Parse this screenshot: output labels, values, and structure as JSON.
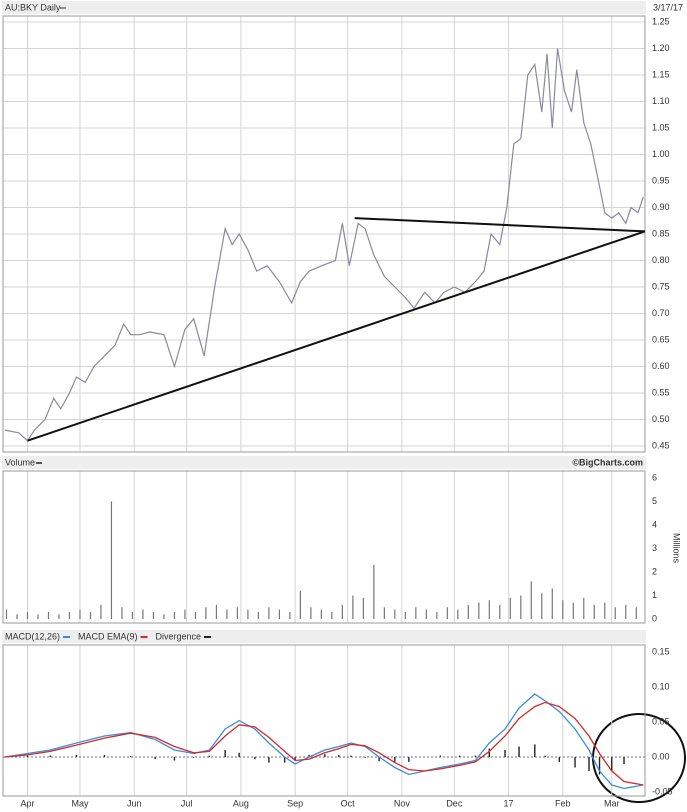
{
  "chart_data": [
    {
      "type": "line",
      "title": "AU:BKY Daily",
      "date": "3/17/17",
      "xlim": [
        -14,
        353
      ],
      "ylim": [
        0.45,
        1.25
      ],
      "yticks": [
        0.45,
        {
          "value": 0.5,
          "label": "0.50"
        },
        0.55,
        {
          "value": 0.6,
          "label": "0.60"
        },
        0.65,
        {
          "value": 0.7,
          "label": "0.70"
        },
        0.75,
        {
          "value": 0.8,
          "label": "0.80"
        },
        0.85,
        {
          "value": 0.9,
          "label": "0.90"
        },
        0.95,
        {
          "value": 1.0,
          "label": "1.00"
        },
        1.05,
        {
          "value": 1.1,
          "label": "1.10"
        },
        1.15,
        {
          "value": 1.2,
          "label": "1.20"
        },
        1.25
      ],
      "grid": true,
      "series": [
        {
          "name": "AU:BKY",
          "color": "#8a8a9a",
          "x": [
            -13,
            -5,
            0,
            4,
            10,
            15,
            19,
            24,
            28,
            33,
            38,
            44,
            50,
            55,
            59,
            64,
            70,
            78,
            84,
            90,
            95,
            101,
            107,
            113,
            117,
            121,
            126,
            131,
            137,
            144,
            151,
            156,
            161,
            168,
            176,
            180,
            184,
            189,
            193,
            198,
            204,
            210,
            216,
            221,
            227,
            233,
            238,
            244,
            250,
            256,
            261,
            265,
            270,
            274,
            278,
            282,
            286,
            290,
            294,
            297,
            300,
            303,
            307,
            311,
            314,
            318,
            322,
            327,
            330,
            334,
            338,
            342,
            345,
            349,
            352
          ],
          "values": [
            0.48,
            0.475,
            0.46,
            0.48,
            0.5,
            0.54,
            0.52,
            0.55,
            0.58,
            0.57,
            0.6,
            0.62,
            0.64,
            0.68,
            0.66,
            0.66,
            0.665,
            0.66,
            0.6,
            0.67,
            0.69,
            0.62,
            0.75,
            0.86,
            0.83,
            0.85,
            0.82,
            0.78,
            0.79,
            0.76,
            0.72,
            0.76,
            0.78,
            0.79,
            0.8,
            0.87,
            0.79,
            0.87,
            0.86,
            0.81,
            0.77,
            0.75,
            0.73,
            0.71,
            0.74,
            0.72,
            0.74,
            0.75,
            0.74,
            0.76,
            0.78,
            0.85,
            0.83,
            0.9,
            1.02,
            1.03,
            1.15,
            1.17,
            1.08,
            1.19,
            1.05,
            1.2,
            1.12,
            1.08,
            1.16,
            1.06,
            1.02,
            0.94,
            0.89,
            0.88,
            0.89,
            0.87,
            0.9,
            0.89,
            0.92
          ]
        }
      ],
      "trendlines": [
        {
          "x": [
            0,
            353
          ],
          "y": [
            0.46,
            0.855
          ]
        },
        {
          "x": [
            187,
            353
          ],
          "y": [
            0.88,
            0.855
          ]
        }
      ]
    },
    {
      "type": "bar",
      "title": "Volume",
      "source": "©BigCharts.com",
      "y_label": "Millions",
      "xlim": [
        -14,
        353
      ],
      "ylim": [
        0,
        6
      ],
      "yticks": [
        0,
        1,
        2,
        3,
        4,
        5,
        6
      ],
      "color": "#777",
      "x": [
        -12,
        -6,
        0,
        6,
        12,
        18,
        24,
        30,
        36,
        42,
        48,
        54,
        60,
        66,
        72,
        78,
        84,
        90,
        96,
        102,
        108,
        114,
        120,
        126,
        132,
        138,
        144,
        150,
        156,
        162,
        168,
        174,
        180,
        186,
        192,
        198,
        204,
        210,
        216,
        222,
        228,
        234,
        240,
        246,
        252,
        258,
        264,
        270,
        276,
        282,
        288,
        294,
        300,
        306,
        312,
        318,
        324,
        330,
        336,
        342,
        348
      ],
      "values": [
        0.4,
        0.2,
        0.3,
        0.2,
        0.3,
        0.2,
        0.3,
        0.4,
        0.3,
        0.6,
        5.0,
        0.5,
        0.3,
        0.4,
        0.3,
        0.2,
        0.3,
        0.4,
        0.3,
        0.5,
        0.6,
        0.4,
        0.5,
        0.4,
        0.3,
        0.5,
        0.4,
        0.3,
        1.2,
        0.5,
        0.4,
        0.3,
        0.6,
        1.0,
        0.9,
        2.3,
        0.5,
        0.4,
        0.3,
        0.5,
        0.4,
        0.3,
        0.5,
        0.4,
        0.6,
        0.7,
        0.8,
        0.6,
        0.9,
        1.0,
        1.6,
        1.1,
        1.3,
        0.8,
        0.7,
        0.9,
        0.6,
        0.7,
        0.5,
        0.6,
        0.5
      ]
    },
    {
      "type": "macd",
      "xlim": [
        -14,
        353
      ],
      "ylim": [
        -0.05,
        0.15
      ],
      "yticks": [
        -0.05,
        {
          "value": 0,
          "label": "0.00"
        },
        0.05,
        {
          "value": 0.1,
          "label": "0.10"
        },
        0.15
      ],
      "xticks": [
        {
          "value": 0,
          "label": "Apr"
        },
        {
          "value": 30,
          "label": "May"
        },
        {
          "value": 61,
          "label": "Jun"
        },
        {
          "value": 91,
          "label": "Jul"
        },
        {
          "value": 122,
          "label": "Aug"
        },
        {
          "value": 153,
          "label": "Sep"
        },
        {
          "value": 183,
          "label": "Oct"
        },
        {
          "value": 214,
          "label": "Nov"
        },
        {
          "value": 244,
          "label": "Dec"
        },
        {
          "value": 275,
          "label": "17"
        },
        {
          "value": 306,
          "label": "Feb"
        },
        {
          "value": 334,
          "label": "Mar"
        }
      ],
      "x": [
        -13,
        0,
        13,
        28,
        44,
        59,
        73,
        84,
        95,
        104,
        113,
        121,
        130,
        138,
        147,
        153,
        161,
        170,
        178,
        185,
        193,
        201,
        210,
        218,
        227,
        236,
        247,
        256,
        264,
        273,
        281,
        290,
        296,
        304,
        313,
        321,
        327,
        334,
        341,
        352
      ],
      "series": [
        {
          "name": "MACD(12,26)",
          "color": "#3a8fd9",
          "values": [
            0.0,
            0.005,
            0.01,
            0.02,
            0.03,
            0.035,
            0.025,
            0.01,
            0.005,
            0.01,
            0.04,
            0.052,
            0.04,
            0.02,
            0.0,
            -0.01,
            0.0,
            0.01,
            0.015,
            0.02,
            0.015,
            0.0,
            -0.015,
            -0.025,
            -0.02,
            -0.015,
            -0.01,
            -0.005,
            0.02,
            0.04,
            0.07,
            0.09,
            0.08,
            0.065,
            0.04,
            0.01,
            -0.02,
            -0.04,
            -0.045,
            -0.04
          ]
        },
        {
          "name": "MACD EMA(9)",
          "color": "#d42a2a",
          "values": [
            0.0,
            0.003,
            0.008,
            0.017,
            0.027,
            0.034,
            0.028,
            0.015,
            0.006,
            0.008,
            0.03,
            0.046,
            0.043,
            0.028,
            0.008,
            -0.005,
            -0.003,
            0.006,
            0.012,
            0.018,
            0.016,
            0.006,
            -0.008,
            -0.018,
            -0.02,
            -0.017,
            -0.012,
            -0.007,
            0.008,
            0.03,
            0.055,
            0.072,
            0.078,
            0.072,
            0.055,
            0.03,
            0.005,
            -0.02,
            -0.035,
            -0.04
          ]
        },
        {
          "name": "Divergence",
          "color": "#222",
          "values": [
            0.0,
            0.002,
            0.002,
            0.003,
            0.003,
            0.001,
            -0.003,
            -0.005,
            -0.001,
            0.002,
            0.01,
            0.006,
            -0.003,
            -0.008,
            -0.008,
            -0.005,
            0.003,
            0.004,
            0.003,
            0.002,
            -0.001,
            -0.006,
            -0.007,
            -0.007,
            0.0,
            0.002,
            0.002,
            0.002,
            0.012,
            0.01,
            0.015,
            0.018,
            0.002,
            -0.007,
            -0.015,
            -0.02,
            -0.025,
            -0.02,
            -0.01,
            0.0
          ]
        }
      ]
    }
  ]
}
